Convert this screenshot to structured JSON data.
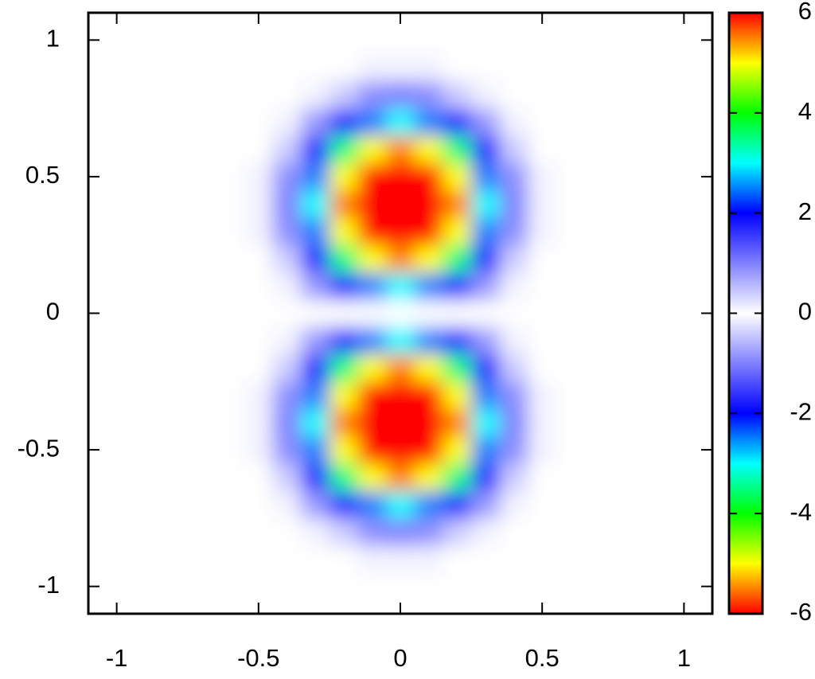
{
  "chart_data": {
    "type": "heatmap",
    "x": [
      -1,
      -0.9,
      -0.8,
      -0.7,
      -0.6,
      -0.5,
      -0.4,
      -0.3,
      -0.2,
      -0.1,
      0,
      0.1,
      0.2,
      0.3,
      0.4,
      0.5,
      0.6,
      0.7,
      0.8,
      0.9,
      1
    ],
    "y": [
      -1,
      -0.9,
      -0.8,
      -0.7,
      -0.6,
      -0.5,
      -0.4,
      -0.3,
      -0.2,
      -0.1,
      0,
      0.1,
      0.2,
      0.3,
      0.4,
      0.5,
      0.6,
      0.7,
      0.8,
      0.9,
      1
    ],
    "z": [
      [
        0,
        0,
        0,
        0,
        0,
        0,
        0,
        0,
        0,
        0,
        0,
        0,
        0,
        0,
        0,
        0,
        0,
        0,
        0,
        0,
        0
      ],
      [
        0,
        0,
        0,
        0,
        0,
        0,
        0,
        0,
        0,
        -0.1,
        -0.1,
        -0.1,
        0,
        0,
        0,
        0,
        0,
        0,
        0,
        0,
        0
      ],
      [
        0,
        0,
        0,
        0,
        0,
        0,
        0,
        -0.1,
        -0.4,
        -0.9,
        -1,
        -0.9,
        -0.4,
        -0.1,
        0,
        0,
        0,
        0,
        0,
        0,
        0
      ],
      [
        0,
        0,
        0,
        0,
        0,
        0,
        -0.1,
        -0.8,
        -1.8,
        -2.5,
        -3,
        -2.5,
        -1.8,
        -0.8,
        -0.1,
        0,
        0,
        0,
        0,
        0,
        0
      ],
      [
        0,
        0,
        0,
        0,
        0,
        0,
        -0.4,
        -1.8,
        -3.5,
        -5,
        -5.5,
        -5,
        -3.5,
        -1.8,
        -0.4,
        0,
        0,
        0,
        0,
        0,
        0
      ],
      [
        0,
        0,
        0,
        0,
        0,
        -0.1,
        -0.9,
        -2.5,
        -5,
        -6,
        -6,
        -6,
        -5,
        -2.5,
        -0.9,
        -0.1,
        0,
        0,
        0,
        0,
        0
      ],
      [
        0,
        0,
        0,
        0,
        0,
        -0.1,
        -1,
        -3,
        -5.5,
        -6,
        -6,
        -6,
        -5.5,
        -3,
        -1,
        -0.1,
        0,
        0,
        0,
        0,
        0
      ],
      [
        0,
        0,
        0,
        0,
        0,
        -0.1,
        -0.9,
        -2.5,
        -5,
        -6,
        -6,
        -6,
        -5,
        -2.5,
        -0.9,
        -0.1,
        0,
        0,
        0,
        0,
        0
      ],
      [
        0,
        0,
        0,
        0,
        0,
        0,
        -0.4,
        -1.8,
        -3.5,
        -5,
        -5.5,
        -5,
        -3.5,
        -1.8,
        -0.4,
        0,
        0,
        0,
        0,
        0,
        0
      ],
      [
        0,
        0,
        0,
        0,
        0,
        0,
        -0.1,
        -0.8,
        -1.8,
        -2.5,
        -3,
        -2.5,
        -1.8,
        -0.8,
        -0.1,
        0,
        0,
        0,
        0,
        0,
        0
      ],
      [
        0,
        0,
        0,
        0,
        0,
        0,
        0,
        0,
        0,
        0,
        0,
        0,
        0,
        0,
        0,
        0,
        0,
        0,
        0,
        0,
        0
      ],
      [
        0,
        0,
        0,
        0,
        0,
        0,
        0.1,
        0.8,
        1.8,
        2.5,
        3,
        2.5,
        1.8,
        0.8,
        0.1,
        0,
        0,
        0,
        0,
        0,
        0
      ],
      [
        0,
        0,
        0,
        0,
        0,
        0,
        0.4,
        1.8,
        3.5,
        5,
        5.5,
        5,
        3.5,
        1.8,
        0.4,
        0,
        0,
        0,
        0,
        0,
        0
      ],
      [
        0,
        0,
        0,
        0,
        0,
        0.1,
        0.9,
        2.5,
        5,
        6,
        6,
        6,
        5,
        2.5,
        0.9,
        0.1,
        0,
        0,
        0,
        0,
        0
      ],
      [
        0,
        0,
        0,
        0,
        0,
        0.1,
        1,
        3,
        5.5,
        6,
        6,
        6,
        5.5,
        3,
        1,
        0.1,
        0,
        0,
        0,
        0,
        0
      ],
      [
        0,
        0,
        0,
        0,
        0,
        0.1,
        0.9,
        2.5,
        5,
        6,
        6,
        6,
        5,
        2.5,
        0.9,
        0.1,
        0,
        0,
        0,
        0,
        0
      ],
      [
        0,
        0,
        0,
        0,
        0,
        0,
        0.4,
        1.8,
        3.5,
        5,
        5.5,
        5,
        3.5,
        1.8,
        0.4,
        0,
        0,
        0,
        0,
        0,
        0
      ],
      [
        0,
        0,
        0,
        0,
        0,
        0,
        0.1,
        0.8,
        1.8,
        2.5,
        3,
        2.5,
        1.8,
        0.8,
        0.1,
        0,
        0,
        0,
        0,
        0,
        0
      ],
      [
        0,
        0,
        0,
        0,
        0,
        0,
        0,
        0.1,
        0.4,
        0.9,
        1,
        0.9,
        0.4,
        0.1,
        0,
        0,
        0,
        0,
        0,
        0,
        0
      ],
      [
        0,
        0,
        0,
        0,
        0,
        0,
        0,
        0,
        0,
        0.1,
        0.1,
        0.1,
        0,
        0,
        0,
        0,
        0,
        0,
        0,
        0,
        0
      ],
      [
        0,
        0,
        0,
        0,
        0,
        0,
        0,
        0,
        0,
        0,
        0,
        0,
        0,
        0,
        0,
        0,
        0,
        0,
        0,
        0,
        0
      ]
    ],
    "xlim": [
      -1.1,
      1.1
    ],
    "ylim": [
      -1.1,
      1.1
    ],
    "xticks": [
      -1,
      -0.5,
      0,
      0.5,
      1
    ],
    "yticks": [
      -1,
      -0.5,
      0,
      0.5,
      1
    ],
    "colormap": [
      "#ffffff",
      "#8080ff",
      "#0000ff",
      "#00ffff",
      "#00ff00",
      "#ffff00",
      "#ff0000"
    ],
    "colormap_symmetric": true,
    "cblim": [
      -6,
      6
    ],
    "cbticks": [
      -6,
      -4,
      -2,
      0,
      2,
      4,
      6
    ]
  }
}
